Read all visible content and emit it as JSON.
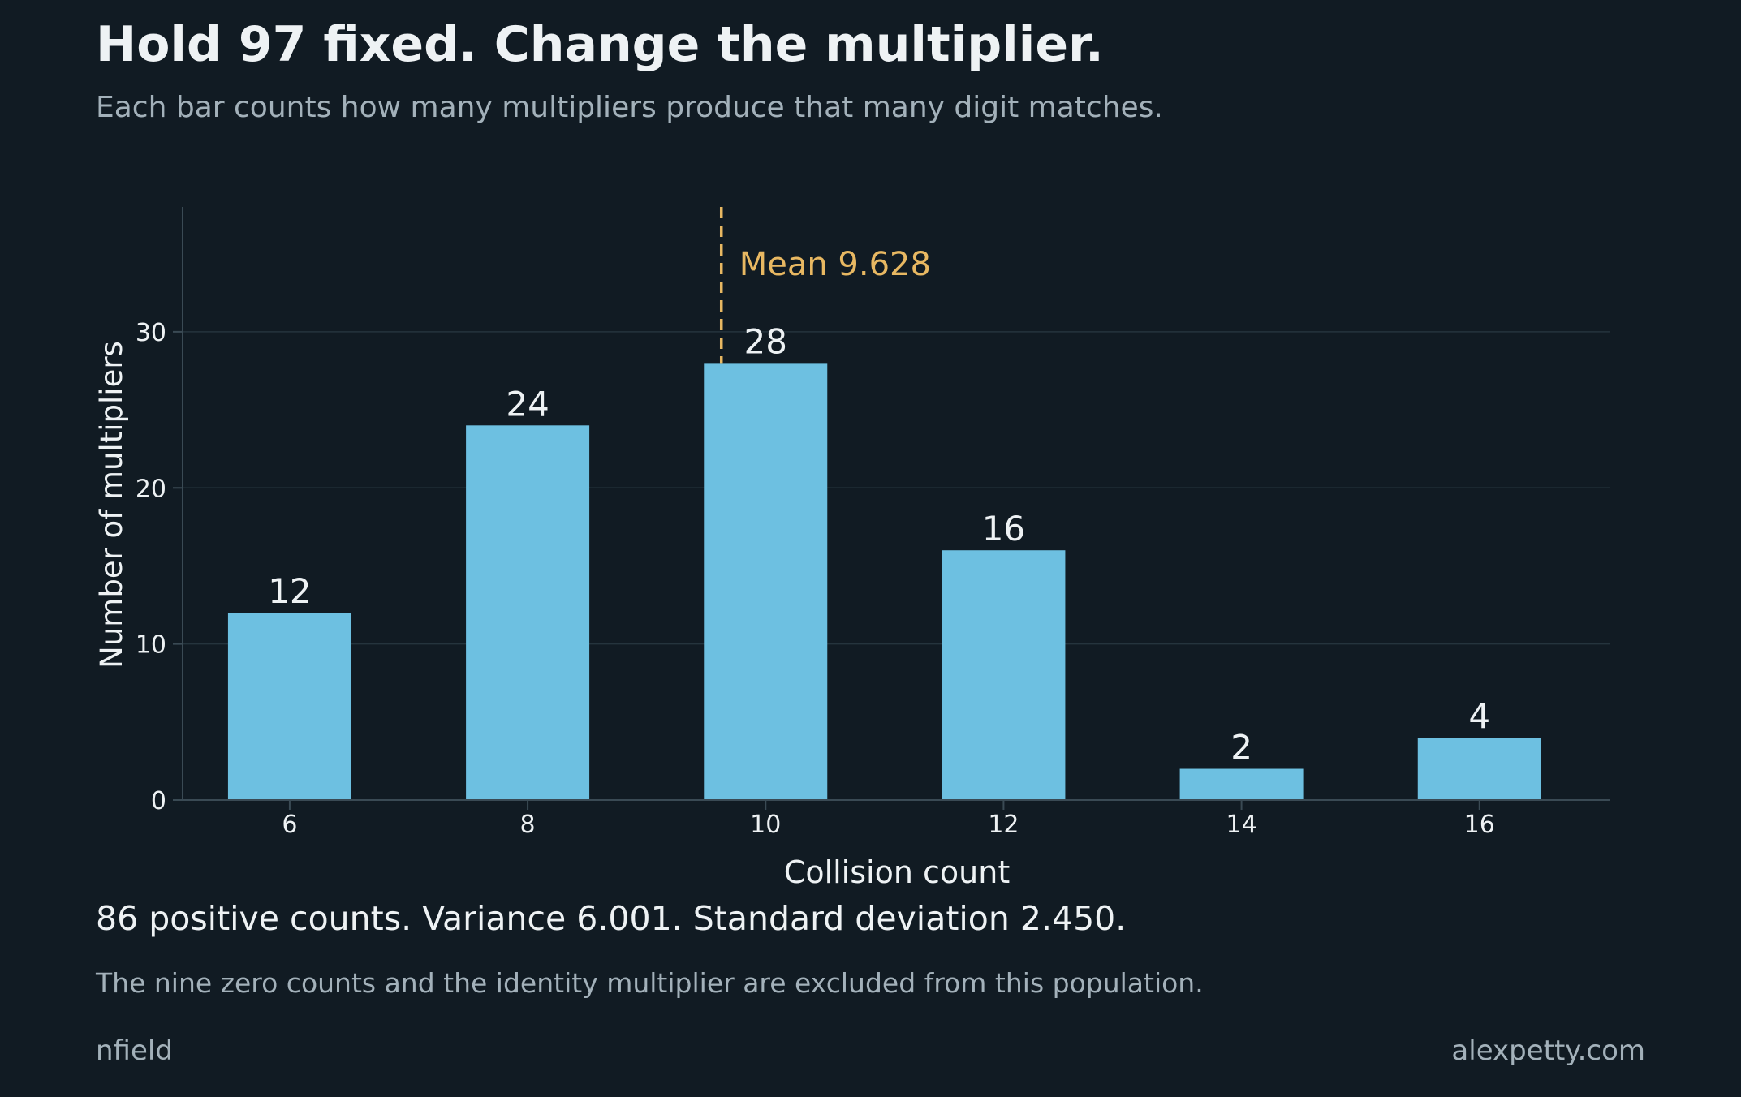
{
  "header": {
    "title": "Hold 97 fixed. Change the multiplier.",
    "subtitle": "Each bar counts how many multipliers produce that many digit matches."
  },
  "chart_data": {
    "type": "bar",
    "categories": [
      "6",
      "8",
      "10",
      "12",
      "14",
      "16"
    ],
    "x": [
      6,
      8,
      10,
      12,
      14,
      16
    ],
    "values": [
      12,
      24,
      28,
      16,
      2,
      4
    ],
    "data_labels": [
      "12",
      "24",
      "28",
      "16",
      "2",
      "4"
    ],
    "xlabel": "Collision count",
    "ylabel": "Number of multipliers",
    "xlim": [
      5.1,
      17.1
    ],
    "ylim": [
      0,
      38
    ],
    "x_ticks": [
      6,
      8,
      10,
      12,
      14,
      16
    ],
    "x_tick_labels": [
      "6",
      "8",
      "10",
      "12",
      "14",
      "16"
    ],
    "y_ticks": [
      0,
      10,
      20,
      30
    ],
    "y_tick_labels": [
      "0",
      "10",
      "20",
      "30"
    ],
    "grid": "horizontal",
    "bar_color": "#6dc0e1",
    "mean": {
      "value": 9.628,
      "label": "Mean 9.628",
      "color": "#e8b862"
    }
  },
  "summary": "86 positive counts. Variance 6.001. Standard deviation 2.450.",
  "note": "The nine zero counts and the identity multiplier are excluded from this population.",
  "footer": {
    "left": "nfield",
    "right": "alexpetty.com"
  },
  "colors": {
    "background": "#111b23",
    "text": "#eef2f4",
    "muted_text": "#a3b1ba",
    "grid": "#25343d",
    "axis": "#3a4a54"
  }
}
